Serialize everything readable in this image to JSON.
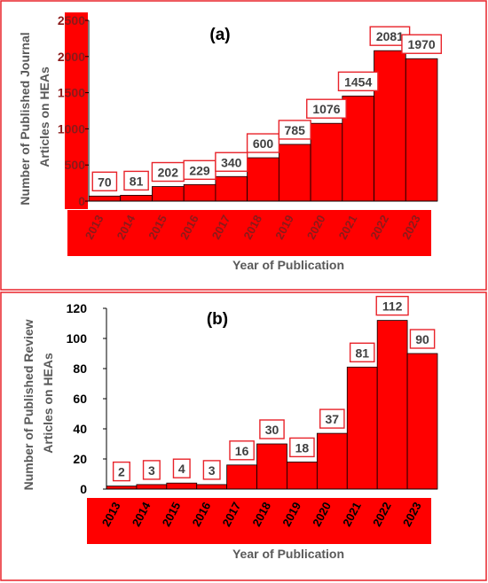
{
  "colors": {
    "bar": "#ff0000",
    "frame": "#e8232a",
    "tick_band": "#ff0000",
    "box": "#e8232a",
    "text": "#595959"
  },
  "chart_data": [
    {
      "type": "bar",
      "title": "(a)",
      "xlabel": "Year of Publication",
      "ylabel_lines": [
        "Number of Published Journal",
        "Articles on HEAs"
      ],
      "categories": [
        "2013",
        "2014",
        "2015",
        "2016",
        "2017",
        "2018",
        "2019",
        "2020",
        "2021",
        "2022",
        "2023"
      ],
      "values": [
        70,
        81,
        202,
        229,
        340,
        600,
        785,
        1076,
        1454,
        2081,
        1970
      ],
      "ylim": [
        0,
        2500
      ],
      "yticks": [
        0,
        500,
        1000,
        1500,
        2000,
        2500
      ],
      "grid": false,
      "legend": "none"
    },
    {
      "type": "bar",
      "title": "(b)",
      "xlabel": "Year of Publication",
      "ylabel_lines": [
        "Number of Published Review",
        "Articles on HEAs"
      ],
      "categories": [
        "2013",
        "2014",
        "2015",
        "2016",
        "2017",
        "2018",
        "2019",
        "2020",
        "2021",
        "2022",
        "2023"
      ],
      "values": [
        2,
        3,
        4,
        3,
        16,
        30,
        18,
        37,
        81,
        112,
        90
      ],
      "ylim": [
        0,
        120
      ],
      "yticks": [
        0,
        20,
        40,
        60,
        80,
        100,
        120
      ],
      "grid": false,
      "legend": "none"
    }
  ]
}
